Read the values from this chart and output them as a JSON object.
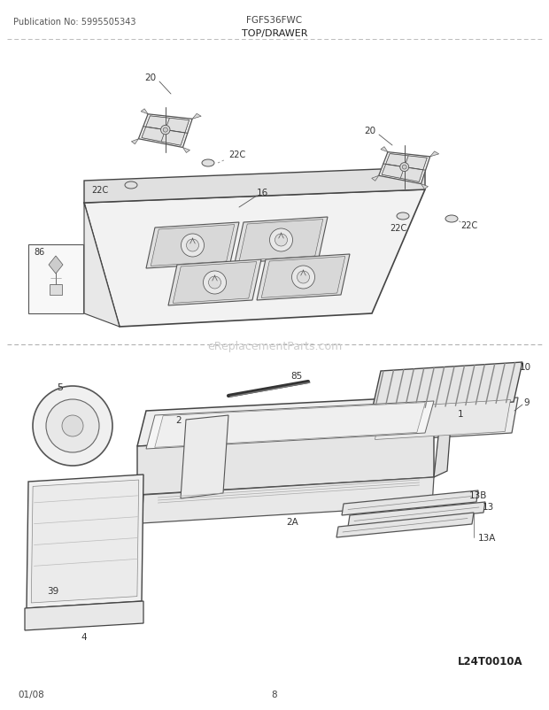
{
  "page_title_left": "Publication No: 5995505343",
  "page_title_center": "FGFS36FWC",
  "section_title": "TOP/DRAWER",
  "footer_left": "01/08",
  "footer_center": "8",
  "watermark": "eReplacementParts.com",
  "diagram_code": "L24T0010A",
  "bg_color": "#ffffff",
  "line_color": "#555555",
  "text_color": "#333333",
  "title_color": "#111111",
  "divider_color": "#999999"
}
